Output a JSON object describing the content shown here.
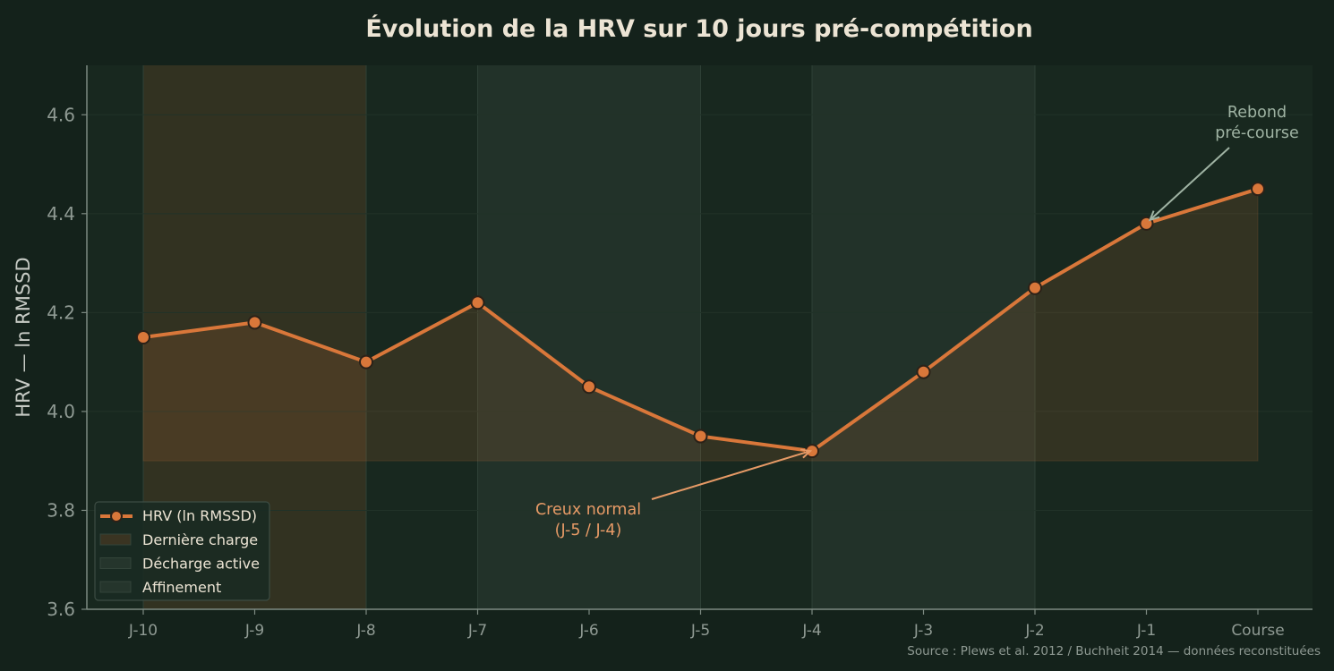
{
  "chart_data": {
    "type": "line",
    "title": "Évolution de la HRV sur 10 jours pré-compétition",
    "xlabel": "",
    "ylabel": "HRV — ln RMSSD",
    "ylim": [
      3.6,
      4.7
    ],
    "yticks": [
      "3.6",
      "3.8",
      "4.0",
      "4.2",
      "4.4",
      "4.6"
    ],
    "ytick_values": [
      3.6,
      3.8,
      4.0,
      4.2,
      4.4,
      4.6
    ],
    "categories": [
      "J-10",
      "J-9",
      "J-8",
      "J-7",
      "J-6",
      "J-5",
      "J-4",
      "J-3",
      "J-2",
      "J-1",
      "Course"
    ],
    "series": [
      {
        "name": "HRV (ln RMSSD)",
        "values": [
          4.15,
          4.18,
          4.1,
          4.22,
          4.05,
          3.95,
          3.92,
          4.08,
          4.25,
          4.38,
          4.45
        ],
        "color": "#d9773a"
      }
    ],
    "fill_baseline": 3.9,
    "phases": [
      {
        "name": "Dernière charge",
        "start_index": 0,
        "end_index": 2,
        "color": "#3a3422"
      },
      {
        "name": "Décharge active",
        "start_index": 3,
        "end_index": 5,
        "color": "#25352c"
      },
      {
        "name": "Affinement",
        "start_index": 6,
        "end_index": 8,
        "color": "#25352c"
      }
    ],
    "annotations": [
      {
        "lines": [
          "Creux normal",
          "(J-5 / J-4)"
        ],
        "target_index": 6,
        "color": "#e69a66"
      },
      {
        "lines": [
          "Rebond",
          "pré-course"
        ],
        "target_index": 9,
        "color": "#9fb3a3"
      }
    ],
    "legend_position": "lower-left",
    "grid": true,
    "source": "Source : Plews et al. 2012 / Buchheit 2014 — données reconstituées",
    "colors": {
      "background": "#14221b",
      "plot_background": "#18281f",
      "text": "#ece4d4",
      "tick": "#8f9a93",
      "axis": "#7d8a82",
      "grid": "#213228"
    }
  }
}
